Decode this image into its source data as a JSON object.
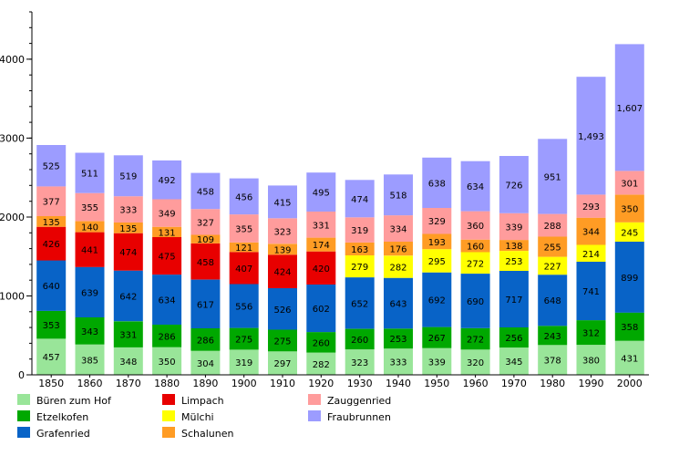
{
  "chart_data": {
    "type": "bar",
    "stacked": true,
    "categories": [
      "1850",
      "1860",
      "1870",
      "1880",
      "1890",
      "1900",
      "1910",
      "1920",
      "1930",
      "1940",
      "1950",
      "1960",
      "1970",
      "1980",
      "1990",
      "2000"
    ],
    "ylim": [
      0,
      4600
    ],
    "yticks": [
      0,
      1000,
      2000,
      3000,
      4000
    ],
    "ytick_labels": [
      "0",
      "1000",
      "2000",
      "3000",
      "4000"
    ],
    "grid": false,
    "legend_position": "bottom",
    "series": [
      {
        "name": "Büren zum Hof",
        "color": "#99e599",
        "values": [
          457,
          385,
          348,
          350,
          304,
          319,
          297,
          282,
          323,
          333,
          339,
          320,
          345,
          378,
          380,
          431
        ],
        "labels": [
          "457",
          "385",
          "348",
          "350",
          "304",
          "319",
          "297",
          "282",
          "323",
          "333",
          "339",
          "320",
          "345",
          "378",
          "380",
          "431"
        ]
      },
      {
        "name": "Etzelkofen",
        "color": "#00a800",
        "values": [
          353,
          343,
          331,
          286,
          286,
          275,
          275,
          260,
          260,
          253,
          267,
          272,
          256,
          243,
          312,
          358
        ],
        "labels": [
          "353",
          "343",
          "331",
          "286",
          "286",
          "275",
          "275",
          "260",
          "260",
          "253",
          "267",
          "272",
          "256",
          "243",
          "312",
          "358"
        ]
      },
      {
        "name": "Grafenried",
        "color": "#0863c7",
        "values": [
          640,
          639,
          642,
          634,
          617,
          556,
          526,
          602,
          652,
          643,
          692,
          690,
          717,
          648,
          741,
          899
        ],
        "labels": [
          "640",
          "639",
          "642",
          "634",
          "617",
          "556",
          "526",
          "602",
          "652",
          "643",
          "692",
          "690",
          "717",
          "648",
          "741",
          "899"
        ]
      },
      {
        "name": "Limpach",
        "color": "#e80000",
        "values": [
          426,
          441,
          474,
          475,
          458,
          407,
          424,
          420,
          null,
          null,
          null,
          null,
          null,
          null,
          null,
          null
        ],
        "labels": [
          "426",
          "441",
          "474",
          "475",
          "458",
          "407",
          "424",
          "420",
          "",
          "",
          "",
          "",
          "",
          "",
          "",
          ""
        ]
      },
      {
        "name": "Mülchi",
        "color": "#ffff00",
        "values": [
          null,
          null,
          null,
          null,
          null,
          null,
          null,
          null,
          279,
          282,
          295,
          272,
          253,
          227,
          214,
          245
        ],
        "labels": [
          "",
          "",
          "",
          "",
          "",
          "",
          "",
          "",
          "279",
          "282",
          "295",
          "272",
          "253",
          "227",
          "214",
          "245"
        ]
      },
      {
        "name": "Schalunen",
        "color": "#ff9c24",
        "values": [
          135,
          140,
          135,
          131,
          109,
          121,
          139,
          174,
          163,
          176,
          193,
          160,
          138,
          255,
          344,
          350
        ],
        "labels": [
          "135",
          "140",
          "135",
          "131",
          "109",
          "121",
          "139",
          "174",
          "163",
          "176",
          "193",
          "160",
          "138",
          "255",
          "344",
          "350"
        ]
      },
      {
        "name": "Zauggenried",
        "color": "#ff9c9c",
        "values": [
          377,
          355,
          333,
          349,
          327,
          355,
          323,
          331,
          319,
          334,
          329,
          360,
          339,
          288,
          293,
          301
        ],
        "labels": [
          "377",
          "355",
          "333",
          "349",
          "327",
          "355",
          "323",
          "331",
          "319",
          "334",
          "329",
          "360",
          "339",
          "288",
          "293",
          "301"
        ]
      },
      {
        "name": "Fraubrunnen",
        "color": "#9c9cff",
        "values": [
          525,
          511,
          519,
          492,
          458,
          456,
          415,
          495,
          474,
          518,
          638,
          634,
          726,
          951,
          1493,
          1607
        ],
        "labels": [
          "525",
          "511",
          "519",
          "492",
          "458",
          "456",
          "415",
          "495",
          "474",
          "518",
          "638",
          "634",
          "726",
          "951",
          "1,493",
          "1,607"
        ]
      }
    ]
  }
}
